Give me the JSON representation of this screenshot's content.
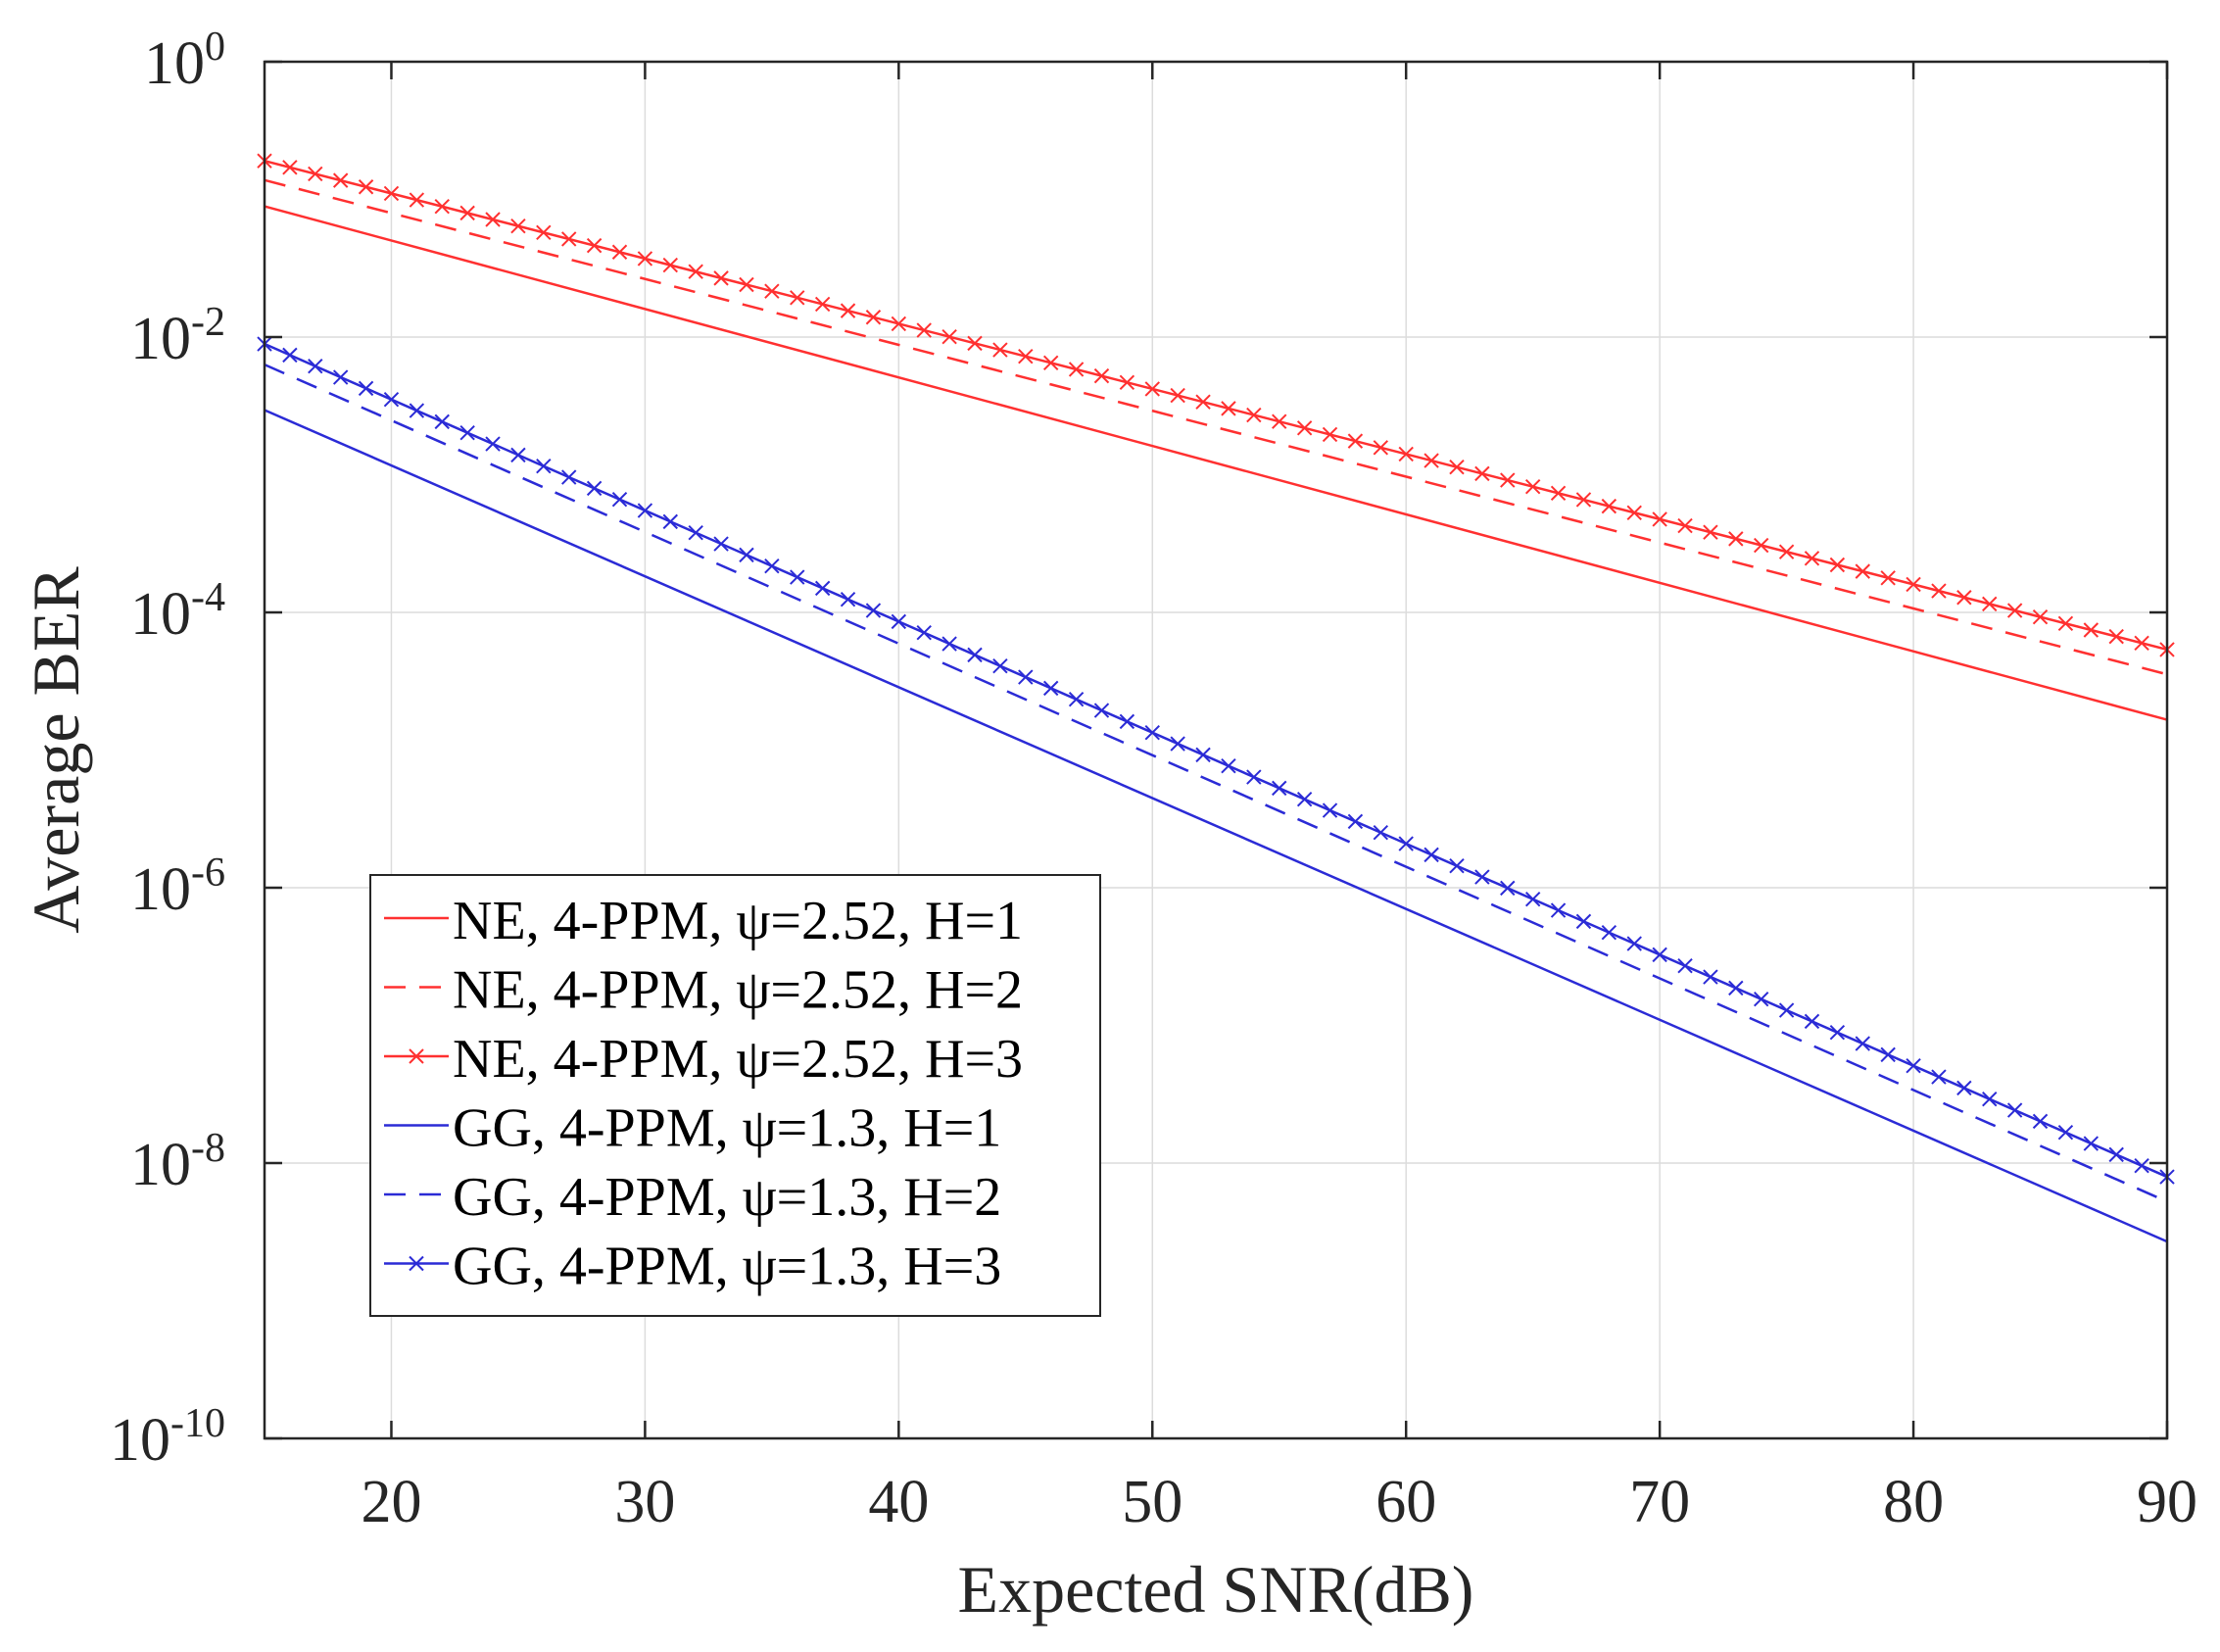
{
  "chart_data": {
    "type": "line",
    "xscale": "linear",
    "yscale": "log",
    "xlabel": "Expected SNR(dB)",
    "ylabel": "Average BER",
    "xlim": [
      15,
      90
    ],
    "ylim_exp": [
      -10,
      0
    ],
    "grid": true,
    "xticks": [
      20,
      30,
      40,
      50,
      60,
      70,
      80,
      90
    ],
    "yticks_exp": [
      0,
      -2,
      -4,
      -6,
      -8,
      -10
    ],
    "ytick_base": "10",
    "legend_location": "bottom-left",
    "series": [
      {
        "name": "NE, 4-PPM, ψ=2.52, H=1",
        "color": "#ff3030",
        "style": "solid",
        "marker": "none",
        "x": [
          15,
          90
        ],
        "y_exp": [
          -1.05,
          -4.78
        ]
      },
      {
        "name": "NE, 4-PPM, ψ=2.52, H=2",
        "color": "#ff3030",
        "style": "dashed",
        "marker": "none",
        "x": [
          15,
          90
        ],
        "y_exp": [
          -0.86,
          -4.45
        ]
      },
      {
        "name": "NE, 4-PPM, ψ=2.52, H=3",
        "color": "#ff3030",
        "style": "solid",
        "marker": "x",
        "x": [
          15,
          90
        ],
        "y_exp": [
          -0.72,
          -4.27
        ]
      },
      {
        "name": "GG, 4-PPM, ψ=1.3, H=1",
        "color": "#2b2bd6",
        "style": "solid",
        "marker": "none",
        "x": [
          15,
          90
        ],
        "y_exp": [
          -2.53,
          -8.57
        ]
      },
      {
        "name": "GG, 4-PPM, ψ=1.3, H=2",
        "color": "#2b2bd6",
        "style": "dashed",
        "marker": "none",
        "x": [
          15,
          90
        ],
        "y_exp": [
          -2.2,
          -8.28
        ]
      },
      {
        "name": "GG, 4-PPM, ψ=1.3, H=3",
        "color": "#2b2bd6",
        "style": "solid",
        "marker": "x",
        "x": [
          15,
          90
        ],
        "y_exp": [
          -2.05,
          -8.1
        ]
      }
    ]
  }
}
